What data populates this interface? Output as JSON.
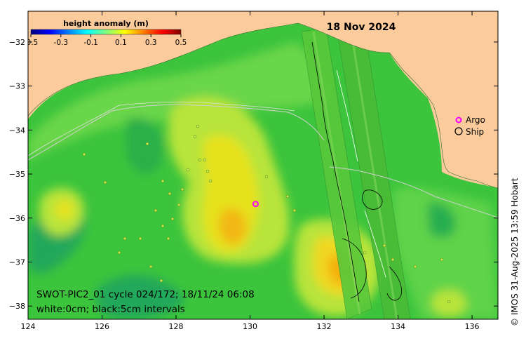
{
  "date_label": "18 Nov 2024",
  "colorbar": {
    "title": "height anomaly (m)",
    "ticks": [
      "-0.5",
      "-0.3",
      "-0.1",
      "0.1",
      "0.3",
      "0.5"
    ],
    "colors": [
      "#00007f",
      "#0000ff",
      "#007fff",
      "#00ffff",
      "#7fff7f",
      "#ffff00",
      "#ff7f00",
      "#ff0000",
      "#7f0000"
    ]
  },
  "legend": {
    "argo_label": "Argo",
    "ship_label": "Ship",
    "argo_color": "#ff00ff",
    "ship_color": "#000000"
  },
  "info_line1": "SWOT-PIC2_01 cycle 024/172; 18/11/24 06:08",
  "info_line2": "white:0cm; black:5cm intervals",
  "credit": "© IMOS 31-Aug-2025 13:59 Hobart",
  "axes": {
    "x_ticks": [
      124,
      126,
      128,
      130,
      132,
      134,
      136
    ],
    "y_ticks": [
      -32,
      -33,
      -34,
      -35,
      -36,
      -37,
      -38
    ],
    "x_range": [
      124,
      136.7
    ],
    "y_range": [
      -38.3,
      -31.3
    ]
  },
  "colors": {
    "land": "#fbcb9c",
    "ocean_base": "#3cc43c",
    "ocean_light": "#6ad64a",
    "anomaly_pos": "#c8ea3c",
    "anomaly_strong": "#f0d820",
    "anomaly_peak": "#f4b010",
    "anomaly_neg": "#22a85a",
    "contour_white": "#d0d0d0",
    "contour_black": "#000000"
  },
  "argo_float": {
    "lon": 130.15,
    "lat": -35.68
  }
}
